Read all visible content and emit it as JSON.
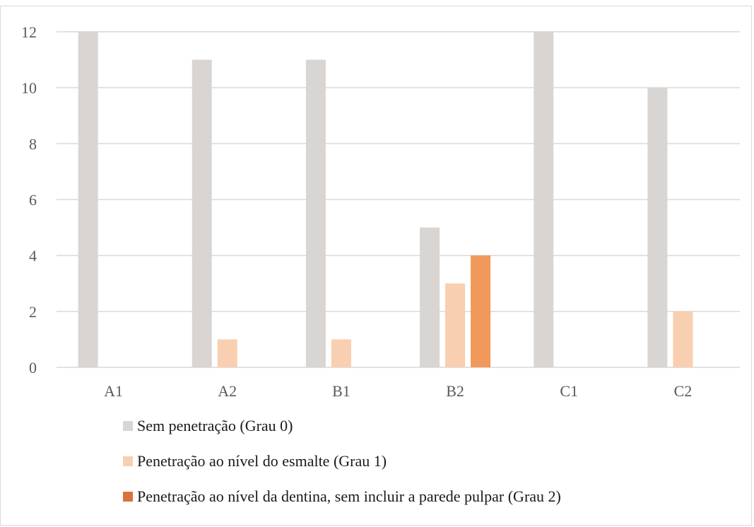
{
  "chart_data": {
    "type": "bar",
    "categories": [
      "A1",
      "A2",
      "B1",
      "B2",
      "C1",
      "C2"
    ],
    "series": [
      {
        "name": "Sem penetração (Grau 0)",
        "values": [
          12,
          11,
          11,
          5,
          12,
          10
        ],
        "color": "#d9d5d2"
      },
      {
        "name": "Penetração ao nível do esmalte (Grau 1)",
        "values": [
          0,
          1,
          1,
          3,
          0,
          2
        ],
        "color": "#f8cfb0"
      },
      {
        "name": "Penetração ao nível da dentina, sem incluir a parede pulpar (Grau 2)",
        "values": [
          0,
          0,
          0,
          4,
          0,
          0
        ],
        "color": "#f0995a",
        "legend_color": "#d7743a"
      }
    ],
    "y_ticks": [
      "0",
      "2",
      "4",
      "6",
      "8",
      "10",
      "12"
    ],
    "ylim": [
      0,
      12
    ],
    "grid": true,
    "legend_position": "bottom"
  }
}
